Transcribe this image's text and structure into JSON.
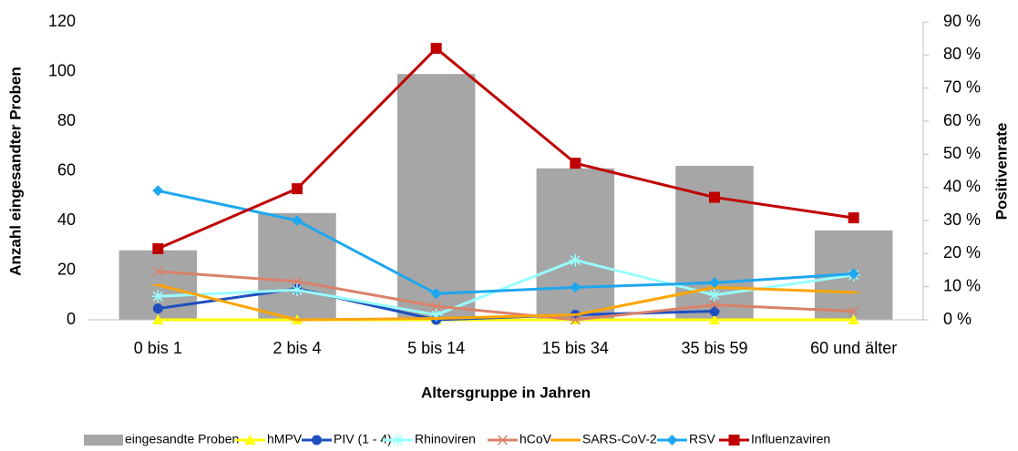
{
  "chart_data": {
    "type": "bar-line",
    "xlabel": "Altersgruppe in Jahren",
    "ylabel": "Anzahl eingesandter Proben",
    "y2label": "Positivenrate",
    "categories": [
      "0 bis 1",
      "2 bis 4",
      "5 bis 14",
      "15 bis 34",
      "35 bis 59",
      "60 und älter"
    ],
    "ylim": [
      0,
      120
    ],
    "yticks": [
      0,
      20,
      40,
      60,
      80,
      100,
      120
    ],
    "y2lim": [
      0,
      90
    ],
    "y2ticks": [
      {
        "value": 0,
        "label": "0 %"
      },
      {
        "value": 10,
        "label": "10 %"
      },
      {
        "value": 20,
        "label": "20 %"
      },
      {
        "value": 30,
        "label": "30 %"
      },
      {
        "value": 40,
        "label": "40 %"
      },
      {
        "value": 50,
        "label": "50 %"
      },
      {
        "value": 60,
        "label": "60 %"
      },
      {
        "value": 70,
        "label": "70 %"
      },
      {
        "value": 80,
        "label": "80 %"
      },
      {
        "value": 90,
        "label": "90 %"
      }
    ],
    "legend": "bottom",
    "series": [
      {
        "name": "eingesandte Proben",
        "type": "bar",
        "color": "#a6a6a6",
        "values": [
          28,
          43,
          99,
          61,
          62,
          36
        ]
      },
      {
        "name": "hMPV",
        "type": "line",
        "axis": "y2",
        "marker": "triangle",
        "color": "#ffff00",
        "values": [
          0,
          0,
          0,
          0,
          0,
          0
        ]
      },
      {
        "name": "PIV (1 - 4)",
        "type": "line",
        "axis": "y2",
        "marker": "circle",
        "color": "#1f4fbf",
        "values": [
          3.4,
          9.4,
          0,
          1.5,
          2.6,
          null
        ]
      },
      {
        "name": "Rhinoviren",
        "type": "line",
        "axis": "y2",
        "marker": "star",
        "color": "#99ffff",
        "values": [
          7.1,
          9,
          1.5,
          18,
          7.5,
          13.5
        ]
      },
      {
        "name": "hCoV",
        "type": "line",
        "axis": "y2",
        "marker": "x",
        "color": "#d9826a",
        "values": [
          14.6,
          11.6,
          4.1,
          0,
          4.5,
          2.6
        ]
      },
      {
        "name": "SARS-CoV-2",
        "type": "line",
        "axis": "y2",
        "marker": "plus",
        "color": "#ffa500",
        "values": [
          10.5,
          0,
          0.4,
          1.5,
          9.8,
          8.3
        ]
      },
      {
        "name": "RSV",
        "type": "line",
        "axis": "y2",
        "marker": "diamond",
        "color": "#1ea7f0",
        "values": [
          39,
          30,
          7.9,
          9.8,
          11.2,
          13.9
        ]
      },
      {
        "name": "Influenzaviren",
        "type": "line",
        "axis": "y2",
        "marker": "square",
        "color": "#c00000",
        "values": [
          21.5,
          39.6,
          82,
          47.3,
          37,
          30.8
        ]
      }
    ]
  }
}
